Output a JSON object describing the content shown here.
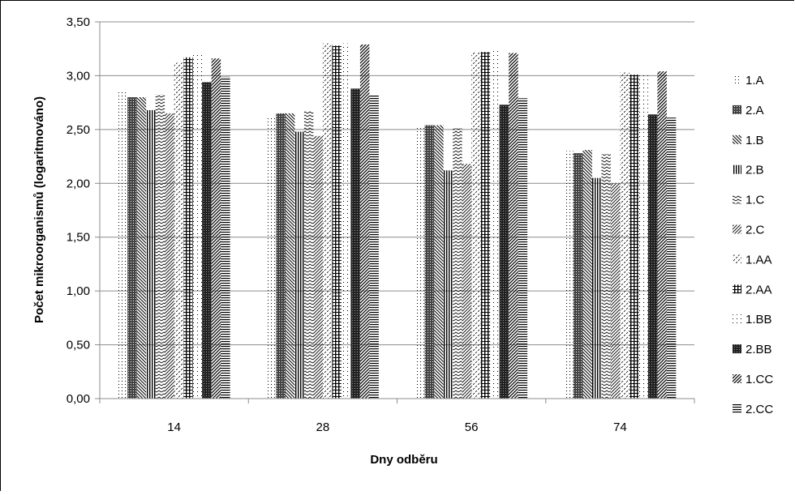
{
  "chart_data": {
    "type": "bar",
    "title": "",
    "xlabel": "Dny odběru",
    "ylabel": "Počet mikroorganismů (logaritmováno)",
    "ylim": [
      0,
      3.5
    ],
    "yticks": [
      "0,00",
      "0,50",
      "1,00",
      "1,50",
      "2,00",
      "2,50",
      "3,00",
      "3,50"
    ],
    "grid": true,
    "legend_position": "right",
    "categories": [
      "14",
      "28",
      "56",
      "74"
    ],
    "series": [
      {
        "name": "1.A",
        "pattern": "dots",
        "values": [
          2.85,
          2.62,
          2.53,
          2.3
        ]
      },
      {
        "name": "2.A",
        "pattern": "dense-cross",
        "values": [
          2.8,
          2.65,
          2.54,
          2.28
        ]
      },
      {
        "name": "1.B",
        "pattern": "diag-down",
        "values": [
          2.8,
          2.65,
          2.54,
          2.31
        ]
      },
      {
        "name": "2.B",
        "pattern": "vertical",
        "values": [
          2.68,
          2.48,
          2.12,
          2.05
        ]
      },
      {
        "name": "1.C",
        "pattern": "wave",
        "values": [
          2.83,
          2.67,
          2.51,
          2.27
        ]
      },
      {
        "name": "2.C",
        "pattern": "zigzag",
        "values": [
          2.65,
          2.44,
          2.18,
          2.0
        ]
      },
      {
        "name": "1.AA",
        "pattern": "confetti",
        "values": [
          3.12,
          3.3,
          3.22,
          3.03
        ]
      },
      {
        "name": "2.AA",
        "pattern": "grid",
        "values": [
          3.17,
          3.28,
          3.22,
          3.01
        ]
      },
      {
        "name": "1.BB",
        "pattern": "dots-sparse",
        "values": [
          3.2,
          3.3,
          3.25,
          3.02
        ]
      },
      {
        "name": "2.BB",
        "pattern": "checker",
        "values": [
          2.94,
          2.88,
          2.73,
          2.64
        ]
      },
      {
        "name": "1.CC",
        "pattern": "diag-up",
        "values": [
          3.16,
          3.29,
          3.21,
          3.04
        ]
      },
      {
        "name": "2.CC",
        "pattern": "horizontal",
        "values": [
          2.99,
          2.82,
          2.79,
          2.61
        ]
      }
    ]
  }
}
